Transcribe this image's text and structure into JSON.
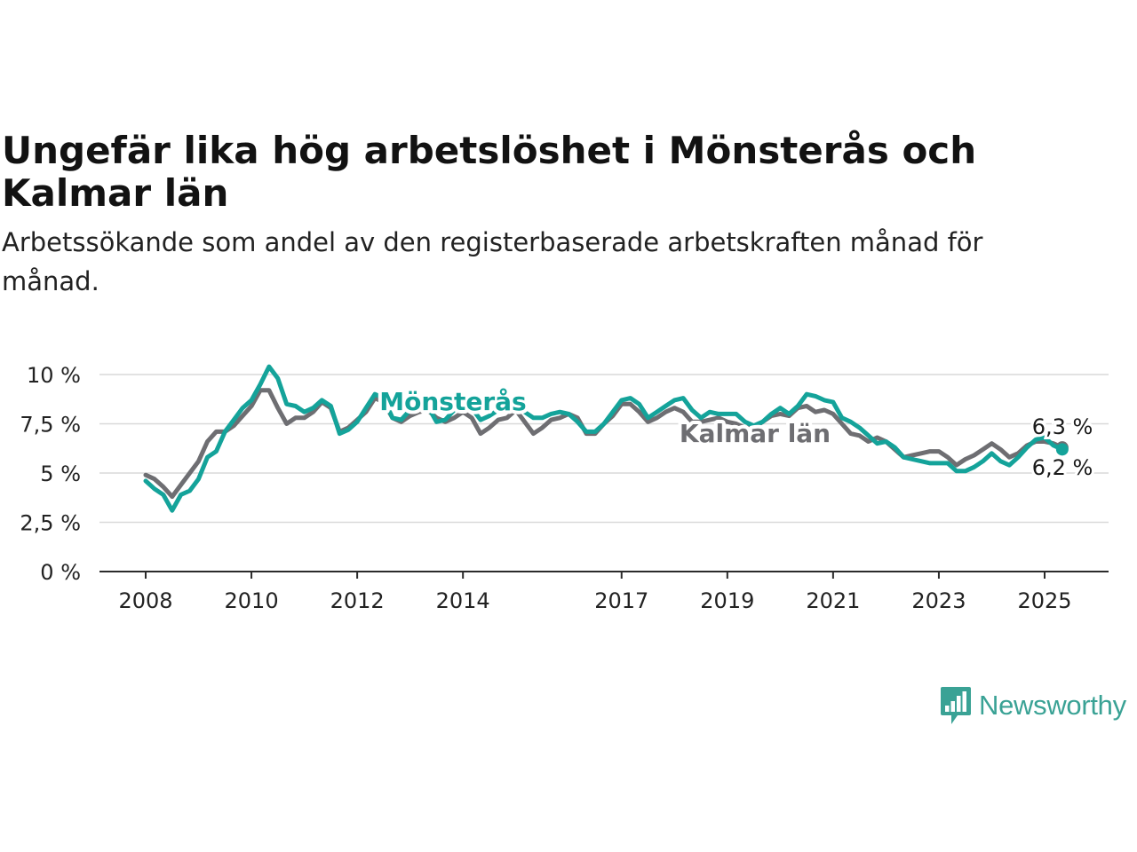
{
  "title": "Ungefär lika hög arbetslöshet i Mönsterås och Kalmar län",
  "subtitle": "Arbetssökande som andel av den registerbaserade arbetskraften månad för månad.",
  "brand": {
    "name": "Newsworthy",
    "icon": "newsworthy-logo-icon",
    "color": "#3aa295"
  },
  "chart_data": {
    "type": "line",
    "x_ticks": [
      "2008",
      "2010",
      "2012",
      "2014",
      "2017",
      "2019",
      "2021",
      "2023",
      "2025"
    ],
    "y_ticks": [
      {
        "value": 0,
        "label": "0 %"
      },
      {
        "value": 2.5,
        "label": "2,5 %"
      },
      {
        "value": 5,
        "label": "5 %"
      },
      {
        "value": 7.5,
        "label": "7,5 %"
      },
      {
        "value": 10,
        "label": "10 %"
      }
    ],
    "ylim": [
      0,
      10
    ],
    "grid": true,
    "series": [
      {
        "name": "Kalmar län",
        "color": "#6e6e72",
        "end_label": "6,3 %",
        "points": [
          [
            "2008-01",
            4.9
          ],
          [
            "2008-03",
            4.7
          ],
          [
            "2008-05",
            4.3
          ],
          [
            "2008-07",
            3.8
          ],
          [
            "2008-09",
            4.4
          ],
          [
            "2008-11",
            5.0
          ],
          [
            "2009-01",
            5.6
          ],
          [
            "2009-03",
            6.6
          ],
          [
            "2009-05",
            7.1
          ],
          [
            "2009-07",
            7.1
          ],
          [
            "2009-09",
            7.4
          ],
          [
            "2009-11",
            7.9
          ],
          [
            "2010-01",
            8.4
          ],
          [
            "2010-03",
            9.2
          ],
          [
            "2010-05",
            9.2
          ],
          [
            "2010-07",
            8.3
          ],
          [
            "2010-09",
            7.5
          ],
          [
            "2010-11",
            7.8
          ],
          [
            "2011-01",
            7.8
          ],
          [
            "2011-03",
            8.1
          ],
          [
            "2011-05",
            8.6
          ],
          [
            "2011-07",
            8.3
          ],
          [
            "2011-09",
            7.1
          ],
          [
            "2011-11",
            7.3
          ],
          [
            "2012-01",
            7.7
          ],
          [
            "2012-03",
            8.1
          ],
          [
            "2012-05",
            8.8
          ],
          [
            "2012-07",
            8.6
          ],
          [
            "2012-09",
            7.8
          ],
          [
            "2012-11",
            7.6
          ],
          [
            "2013-01",
            7.9
          ],
          [
            "2013-03",
            8.1
          ],
          [
            "2013-05",
            8.2
          ],
          [
            "2013-07",
            7.8
          ],
          [
            "2013-09",
            7.6
          ],
          [
            "2013-11",
            7.8
          ],
          [
            "2014-01",
            8.1
          ],
          [
            "2014-03",
            7.8
          ],
          [
            "2014-05",
            7.0
          ],
          [
            "2014-07",
            7.3
          ],
          [
            "2014-09",
            7.7
          ],
          [
            "2014-11",
            7.8
          ],
          [
            "2015-01",
            8.2
          ],
          [
            "2015-03",
            7.6
          ],
          [
            "2015-05",
            7.0
          ],
          [
            "2015-07",
            7.3
          ],
          [
            "2015-09",
            7.7
          ],
          [
            "2015-11",
            7.8
          ],
          [
            "2016-01",
            8.0
          ],
          [
            "2016-03",
            7.8
          ],
          [
            "2016-05",
            7.0
          ],
          [
            "2016-07",
            7.0
          ],
          [
            "2016-09",
            7.5
          ],
          [
            "2016-11",
            7.9
          ],
          [
            "2017-01",
            8.5
          ],
          [
            "2017-03",
            8.5
          ],
          [
            "2017-05",
            8.1
          ],
          [
            "2017-07",
            7.6
          ],
          [
            "2017-09",
            7.8
          ],
          [
            "2017-11",
            8.1
          ],
          [
            "2018-01",
            8.3
          ],
          [
            "2018-03",
            8.1
          ],
          [
            "2018-05",
            7.6
          ],
          [
            "2018-07",
            7.6
          ],
          [
            "2018-09",
            7.7
          ],
          [
            "2018-11",
            7.8
          ],
          [
            "2019-01",
            7.6
          ],
          [
            "2019-03",
            7.5
          ],
          [
            "2019-05",
            7.3
          ],
          [
            "2019-07",
            7.3
          ],
          [
            "2019-09",
            7.6
          ],
          [
            "2019-11",
            7.9
          ],
          [
            "2020-01",
            8.0
          ],
          [
            "2020-03",
            7.9
          ],
          [
            "2020-05",
            8.3
          ],
          [
            "2020-07",
            8.4
          ],
          [
            "2020-09",
            8.1
          ],
          [
            "2020-11",
            8.2
          ],
          [
            "2021-01",
            8.0
          ],
          [
            "2021-03",
            7.5
          ],
          [
            "2021-05",
            7.0
          ],
          [
            "2021-07",
            6.9
          ],
          [
            "2021-09",
            6.6
          ],
          [
            "2021-11",
            6.8
          ],
          [
            "2022-01",
            6.6
          ],
          [
            "2022-03",
            6.2
          ],
          [
            "2022-05",
            5.8
          ],
          [
            "2022-07",
            5.9
          ],
          [
            "2022-09",
            6.0
          ],
          [
            "2022-11",
            6.1
          ],
          [
            "2023-01",
            6.1
          ],
          [
            "2023-03",
            5.8
          ],
          [
            "2023-05",
            5.4
          ],
          [
            "2023-07",
            5.7
          ],
          [
            "2023-09",
            5.9
          ],
          [
            "2023-11",
            6.2
          ],
          [
            "2024-01",
            6.5
          ],
          [
            "2024-03",
            6.2
          ],
          [
            "2024-05",
            5.8
          ],
          [
            "2024-07",
            6.0
          ],
          [
            "2024-09",
            6.4
          ],
          [
            "2024-11",
            6.6
          ],
          [
            "2025-01",
            6.6
          ],
          [
            "2025-03",
            6.5
          ],
          [
            "2025-05",
            6.3
          ]
        ]
      },
      {
        "name": "Mönsterås",
        "color": "#14a39a",
        "end_label": "6,2 %",
        "points": [
          [
            "2008-01",
            4.6
          ],
          [
            "2008-03",
            4.2
          ],
          [
            "2008-05",
            3.9
          ],
          [
            "2008-07",
            3.1
          ],
          [
            "2008-09",
            3.9
          ],
          [
            "2008-11",
            4.1
          ],
          [
            "2009-01",
            4.7
          ],
          [
            "2009-03",
            5.8
          ],
          [
            "2009-05",
            6.1
          ],
          [
            "2009-07",
            7.1
          ],
          [
            "2009-09",
            7.7
          ],
          [
            "2009-11",
            8.3
          ],
          [
            "2010-01",
            8.7
          ],
          [
            "2010-03",
            9.5
          ],
          [
            "2010-05",
            10.4
          ],
          [
            "2010-07",
            9.8
          ],
          [
            "2010-09",
            8.5
          ],
          [
            "2010-11",
            8.4
          ],
          [
            "2011-01",
            8.1
          ],
          [
            "2011-03",
            8.3
          ],
          [
            "2011-05",
            8.7
          ],
          [
            "2011-07",
            8.4
          ],
          [
            "2011-09",
            7.0
          ],
          [
            "2011-11",
            7.2
          ],
          [
            "2012-01",
            7.6
          ],
          [
            "2012-03",
            8.3
          ],
          [
            "2012-05",
            9.0
          ],
          [
            "2012-07",
            8.8
          ],
          [
            "2012-09",
            7.8
          ],
          [
            "2012-11",
            7.7
          ],
          [
            "2013-01",
            8.2
          ],
          [
            "2013-03",
            8.6
          ],
          [
            "2013-05",
            8.4
          ],
          [
            "2013-07",
            7.6
          ],
          [
            "2013-09",
            7.7
          ],
          [
            "2013-11",
            8.2
          ],
          [
            "2014-01",
            8.6
          ],
          [
            "2014-03",
            8.3
          ],
          [
            "2014-05",
            7.7
          ],
          [
            "2014-07",
            7.9
          ],
          [
            "2014-09",
            8.2
          ],
          [
            "2014-11",
            8.4
          ],
          [
            "2015-01",
            8.6
          ],
          [
            "2015-03",
            8.1
          ],
          [
            "2015-05",
            7.8
          ],
          [
            "2015-07",
            7.8
          ],
          [
            "2015-09",
            8.0
          ],
          [
            "2015-11",
            8.1
          ],
          [
            "2016-01",
            8.0
          ],
          [
            "2016-03",
            7.6
          ],
          [
            "2016-05",
            7.1
          ],
          [
            "2016-07",
            7.1
          ],
          [
            "2016-09",
            7.5
          ],
          [
            "2016-11",
            8.1
          ],
          [
            "2017-01",
            8.7
          ],
          [
            "2017-03",
            8.8
          ],
          [
            "2017-05",
            8.5
          ],
          [
            "2017-07",
            7.8
          ],
          [
            "2017-09",
            8.1
          ],
          [
            "2017-11",
            8.4
          ],
          [
            "2018-01",
            8.7
          ],
          [
            "2018-03",
            8.8
          ],
          [
            "2018-05",
            8.2
          ],
          [
            "2018-07",
            7.8
          ],
          [
            "2018-09",
            8.1
          ],
          [
            "2018-11",
            8.0
          ],
          [
            "2019-01",
            8.0
          ],
          [
            "2019-03",
            8.0
          ],
          [
            "2019-05",
            7.6
          ],
          [
            "2019-07",
            7.4
          ],
          [
            "2019-09",
            7.6
          ],
          [
            "2019-11",
            8.0
          ],
          [
            "2020-01",
            8.3
          ],
          [
            "2020-03",
            8.0
          ],
          [
            "2020-05",
            8.4
          ],
          [
            "2020-07",
            9.0
          ],
          [
            "2020-09",
            8.9
          ],
          [
            "2020-11",
            8.7
          ],
          [
            "2021-01",
            8.6
          ],
          [
            "2021-03",
            7.8
          ],
          [
            "2021-05",
            7.6
          ],
          [
            "2021-07",
            7.3
          ],
          [
            "2021-09",
            6.9
          ],
          [
            "2021-11",
            6.5
          ],
          [
            "2022-01",
            6.6
          ],
          [
            "2022-03",
            6.3
          ],
          [
            "2022-05",
            5.8
          ],
          [
            "2022-07",
            5.7
          ],
          [
            "2022-09",
            5.6
          ],
          [
            "2022-11",
            5.5
          ],
          [
            "2023-01",
            5.5
          ],
          [
            "2023-03",
            5.5
          ],
          [
            "2023-05",
            5.1
          ],
          [
            "2023-07",
            5.1
          ],
          [
            "2023-09",
            5.3
          ],
          [
            "2023-11",
            5.6
          ],
          [
            "2024-01",
            6.0
          ],
          [
            "2024-03",
            5.6
          ],
          [
            "2024-05",
            5.4
          ],
          [
            "2024-07",
            5.8
          ],
          [
            "2024-09",
            6.3
          ],
          [
            "2024-11",
            6.7
          ],
          [
            "2025-01",
            6.8
          ],
          [
            "2025-03",
            6.4
          ],
          [
            "2025-05",
            6.2
          ]
        ]
      }
    ]
  }
}
